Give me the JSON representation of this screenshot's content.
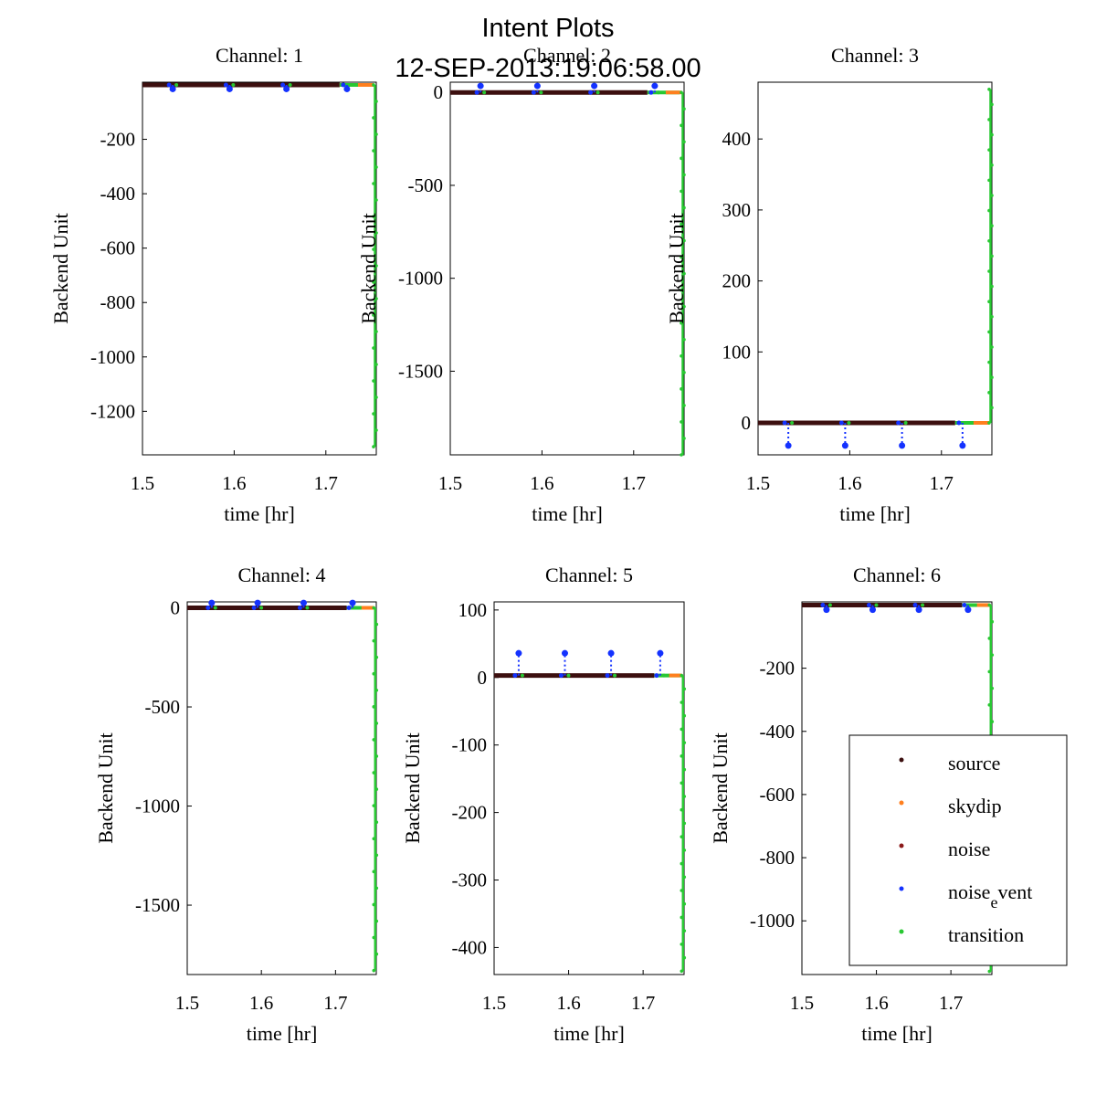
{
  "figure": {
    "title": "Intent Plots",
    "subtitle": "12-SEP-2013:19:06:58.00"
  },
  "legend": {
    "placement": "inside-bottom-right of Channel 6",
    "items": [
      {
        "label": "source",
        "color": "#3c0f0f"
      },
      {
        "label": "skydip",
        "color": "#ff7f1e"
      },
      {
        "label": "noise",
        "color": "#8b1a1a"
      },
      {
        "label": "noise_event",
        "label_main": "noise",
        "label_sub": "e",
        "label_tail": "vent",
        "color": "#1432ff"
      },
      {
        "label": "transition",
        "color": "#28c832"
      }
    ]
  },
  "chart_data": [
    {
      "type": "scatter",
      "title": "Channel: 1",
      "xlabel": "time [hr]",
      "ylabel": "Backend Unit",
      "xlim": [
        1.5,
        1.755
      ],
      "ylim": [
        -1360,
        10
      ],
      "xticks": [
        1.5,
        1.6,
        1.7
      ],
      "yticks": [
        -200,
        -400,
        -600,
        -800,
        -1000,
        -1200
      ],
      "grid": false,
      "baseline": 0,
      "noise_event_x": [
        1.533,
        1.595,
        1.657,
        1.723
      ],
      "noise_event_dip": -15,
      "transition_drop_min": -1330
    },
    {
      "type": "scatter",
      "title": "Channel: 2",
      "xlabel": "time [hr]",
      "ylabel": "Backend Unit",
      "xlim": [
        1.5,
        1.755
      ],
      "ylim": [
        -1950,
        55
      ],
      "xticks": [
        1.5,
        1.6,
        1.7
      ],
      "yticks": [
        0,
        -500,
        -1000,
        -1500
      ],
      "grid": false,
      "baseline": 0,
      "noise_event_x": [
        1.533,
        1.595,
        1.657,
        1.723
      ],
      "noise_event_dip": 35,
      "transition_drop_min": -1950
    },
    {
      "type": "scatter",
      "title": "Channel: 3",
      "xlabel": "time [hr]",
      "ylabel": "Backend Unit",
      "xlim": [
        1.5,
        1.755
      ],
      "ylim": [
        -45,
        480
      ],
      "xticks": [
        1.5,
        1.6,
        1.7
      ],
      "yticks": [
        0,
        100,
        200,
        300,
        400
      ],
      "grid": false,
      "baseline": 0,
      "noise_event_x": [
        1.533,
        1.595,
        1.657,
        1.723
      ],
      "noise_event_dip": -32,
      "transition_drop_min": 470
    },
    {
      "type": "scatter",
      "title": "Channel: 4",
      "xlabel": "time [hr]",
      "ylabel": "Backend Unit",
      "xlim": [
        1.5,
        1.755
      ],
      "ylim": [
        -1850,
        30
      ],
      "xticks": [
        1.5,
        1.6,
        1.7
      ],
      "yticks": [
        0,
        -500,
        -1000,
        -1500
      ],
      "grid": false,
      "baseline": 0,
      "noise_event_x": [
        1.533,
        1.595,
        1.657,
        1.723
      ],
      "noise_event_dip": 25,
      "transition_drop_min": -1830
    },
    {
      "type": "scatter",
      "title": "Channel: 5",
      "xlabel": "time [hr]",
      "ylabel": "Backend Unit",
      "xlim": [
        1.5,
        1.755
      ],
      "ylim": [
        -440,
        112
      ],
      "xticks": [
        1.5,
        1.6,
        1.7
      ],
      "yticks": [
        100,
        0,
        -100,
        -200,
        -300,
        -400
      ],
      "grid": false,
      "baseline": 3,
      "noise_event_x": [
        1.533,
        1.595,
        1.657,
        1.723
      ],
      "noise_event_dip": 33,
      "transition_drop_min": -435
    },
    {
      "type": "scatter",
      "title": "Channel: 6",
      "xlabel": "time [hr]",
      "ylabel": "Backend Unit",
      "xlim": [
        1.5,
        1.755
      ],
      "ylim": [
        -1170,
        10
      ],
      "xticks": [
        1.5,
        1.6,
        1.7
      ],
      "yticks": [
        -200,
        -400,
        -600,
        -800,
        -1000
      ],
      "grid": false,
      "baseline": 0,
      "noise_event_x": [
        1.533,
        1.595,
        1.657,
        1.723
      ],
      "noise_event_dip": -15,
      "transition_drop_min": -1160
    }
  ]
}
